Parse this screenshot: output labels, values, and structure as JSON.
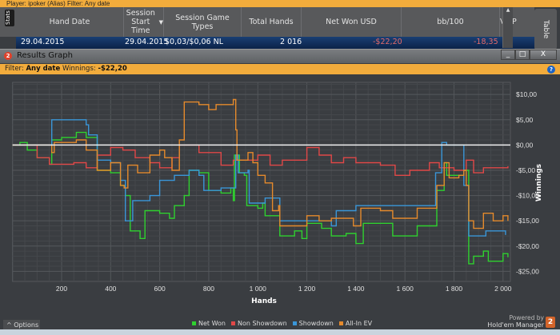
{
  "topbar": {
    "text": "Player: ipoker (Alias)  Filter: Any date"
  },
  "stats_tab": "Stats",
  "table_tab": "Table",
  "table": {
    "columns": [
      "Hand Date",
      "Session Start Time",
      "Session Game Types",
      "Total Hands",
      "Net Won USD",
      "bb/100",
      "VPIP"
    ],
    "row": {
      "hand_date": "29.04.2015",
      "session_start": "29.04.2015",
      "game_type": "$0,03/$0,06 NL",
      "total_hands": "2 016",
      "net_won": "-$22,20",
      "bb100": "-18,35"
    }
  },
  "window": {
    "title": "Results Graph",
    "icon": "2",
    "minimize": "_",
    "maximize": "□",
    "close": "X"
  },
  "filter": {
    "label": "Filter:",
    "value": "Any date",
    "winnings_label": "Winnings:",
    "winnings": "-$22,20",
    "help": "?"
  },
  "options_label": "^  Options",
  "powered": {
    "line1": "Powered by",
    "line2": "Hold'em Manager",
    "logo": "2"
  },
  "chart_data": {
    "type": "line",
    "xlabel": "Hands",
    "ylabel": "Winnings",
    "xlim": [
      0,
      2030
    ],
    "ylim": [
      -27,
      12.4
    ],
    "xticks": [
      200,
      400,
      600,
      800,
      1000,
      1200,
      1400,
      1600,
      1800,
      2000
    ],
    "xtick_labels": [
      "200",
      "400",
      "600",
      "800",
      "1 000",
      "1 200",
      "1 400",
      "1 600",
      "1 800",
      "2 000"
    ],
    "yticks": [
      10,
      5,
      0,
      -5,
      -10,
      -15,
      -20,
      -25
    ],
    "ytick_labels": [
      "$10,00",
      "$5,00",
      "$0,00",
      "-$5,00",
      "-$10,00",
      "-$15,00",
      "-$20,00",
      "-$25,00"
    ],
    "legend_position": "bottom",
    "series": [
      {
        "name": "Net Won",
        "color": "#2fd12f",
        "points": [
          [
            0,
            0
          ],
          [
            30,
            0.5
          ],
          [
            60,
            -1
          ],
          [
            100,
            -2.5
          ],
          [
            150,
            -3.8
          ],
          [
            160,
            1
          ],
          [
            200,
            1.5
          ],
          [
            260,
            2.5
          ],
          [
            300,
            1.5
          ],
          [
            330,
            1.5
          ],
          [
            345,
            -5
          ],
          [
            400,
            -5.5
          ],
          [
            440,
            -8
          ],
          [
            460,
            -10
          ],
          [
            480,
            -17
          ],
          [
            520,
            -18.5
          ],
          [
            540,
            -13
          ],
          [
            600,
            -13.5
          ],
          [
            640,
            -14.5
          ],
          [
            660,
            -12
          ],
          [
            700,
            -10
          ],
          [
            720,
            -5
          ],
          [
            760,
            -5.5
          ],
          [
            800,
            -9
          ],
          [
            850,
            -9.5
          ],
          [
            890,
            -8.5
          ],
          [
            900,
            -11
          ],
          [
            905,
            -2
          ],
          [
            925,
            -5.5
          ],
          [
            945,
            -6
          ],
          [
            955,
            -12
          ],
          [
            1000,
            -12.5
          ],
          [
            1020,
            -11.5
          ],
          [
            1030,
            -14
          ],
          [
            1080,
            -14
          ],
          [
            1090,
            -18
          ],
          [
            1150,
            -17
          ],
          [
            1180,
            -18.5
          ],
          [
            1200,
            -15.5
          ],
          [
            1260,
            -16.5
          ],
          [
            1300,
            -18
          ],
          [
            1360,
            -17.5
          ],
          [
            1400,
            -19.5
          ],
          [
            1430,
            -15.5
          ],
          [
            1500,
            -15.5
          ],
          [
            1550,
            -18
          ],
          [
            1650,
            -16
          ],
          [
            1720,
            -16
          ],
          [
            1730,
            -9
          ],
          [
            1760,
            -3.5
          ],
          [
            1770,
            -6
          ],
          [
            1820,
            -6
          ],
          [
            1840,
            -5
          ],
          [
            1860,
            -23.5
          ],
          [
            1880,
            -22
          ],
          [
            1920,
            -21
          ],
          [
            1940,
            -23
          ],
          [
            2000,
            -21.5
          ],
          [
            2020,
            -22.2
          ]
        ]
      },
      {
        "name": "Non Showdown",
        "color": "#e04848",
        "points": [
          [
            0,
            0
          ],
          [
            100,
            -2.5
          ],
          [
            150,
            -3.8
          ],
          [
            250,
            -3.5
          ],
          [
            300,
            -4.5
          ],
          [
            345,
            -2
          ],
          [
            400,
            -0.5
          ],
          [
            450,
            -1
          ],
          [
            500,
            -2.5
          ],
          [
            560,
            -3.5
          ],
          [
            600,
            -4.5
          ],
          [
            650,
            -2.5
          ],
          [
            680,
            0
          ],
          [
            760,
            -1.5
          ],
          [
            850,
            -4
          ],
          [
            900,
            -3
          ],
          [
            950,
            -3
          ],
          [
            1000,
            -2
          ],
          [
            1050,
            -4
          ],
          [
            1100,
            -3
          ],
          [
            1200,
            -0.5
          ],
          [
            1250,
            -2
          ],
          [
            1300,
            -3.5
          ],
          [
            1350,
            -2.5
          ],
          [
            1400,
            -3.5
          ],
          [
            1500,
            -4
          ],
          [
            1560,
            -6
          ],
          [
            1620,
            -5
          ],
          [
            1700,
            -3.5
          ],
          [
            1740,
            -4.5
          ],
          [
            1800,
            -5
          ],
          [
            1850,
            -3
          ],
          [
            1880,
            -5.5
          ],
          [
            1920,
            -4.5
          ],
          [
            2020,
            -4.2
          ]
        ]
      },
      {
        "name": "Showdown",
        "color": "#3a96d8",
        "points": [
          [
            0,
            0
          ],
          [
            150,
            0
          ],
          [
            160,
            5
          ],
          [
            300,
            4
          ],
          [
            310,
            2
          ],
          [
            340,
            2
          ],
          [
            345,
            -3
          ],
          [
            400,
            -3.5
          ],
          [
            440,
            -7
          ],
          [
            460,
            -15
          ],
          [
            480,
            -15
          ],
          [
            490,
            -11
          ],
          [
            560,
            -10
          ],
          [
            600,
            -7
          ],
          [
            660,
            -6
          ],
          [
            720,
            -5
          ],
          [
            760,
            -6
          ],
          [
            780,
            -9
          ],
          [
            850,
            -8.5
          ],
          [
            900,
            -8.5
          ],
          [
            910,
            -2
          ],
          [
            920,
            -5.5
          ],
          [
            960,
            -5
          ],
          [
            965,
            -11.5
          ],
          [
            1000,
            -11.5
          ],
          [
            1030,
            -10.5
          ],
          [
            1080,
            -10.5
          ],
          [
            1090,
            -15
          ],
          [
            1280,
            -15
          ],
          [
            1300,
            -16
          ],
          [
            1320,
            -13
          ],
          [
            1400,
            -12
          ],
          [
            1720,
            -12
          ],
          [
            1725,
            -5.5
          ],
          [
            1750,
            0.5
          ],
          [
            1770,
            0
          ],
          [
            1820,
            0
          ],
          [
            1840,
            -8
          ],
          [
            1860,
            -18
          ],
          [
            1920,
            -18
          ],
          [
            1930,
            -17
          ],
          [
            2000,
            -17
          ],
          [
            2010,
            -17.8
          ]
        ]
      },
      {
        "name": "All-In EV",
        "color": "#e58a2c",
        "points": [
          [
            0,
            0
          ],
          [
            160,
            -1.5
          ],
          [
            170,
            0.5
          ],
          [
            260,
            1
          ],
          [
            300,
            -1
          ],
          [
            345,
            -5
          ],
          [
            400,
            -3.5
          ],
          [
            440,
            -8
          ],
          [
            455,
            -8.5
          ],
          [
            470,
            -4
          ],
          [
            510,
            -5.5
          ],
          [
            560,
            -2
          ],
          [
            600,
            -1
          ],
          [
            620,
            -2.5
          ],
          [
            650,
            -5
          ],
          [
            680,
            1
          ],
          [
            700,
            8.5
          ],
          [
            760,
            8
          ],
          [
            800,
            7
          ],
          [
            830,
            8
          ],
          [
            900,
            9
          ],
          [
            910,
            3
          ],
          [
            915,
            -3
          ],
          [
            930,
            -3
          ],
          [
            960,
            -1.5
          ],
          [
            980,
            -3.5
          ],
          [
            1000,
            -6
          ],
          [
            1030,
            -7.5
          ],
          [
            1050,
            -7.5
          ],
          [
            1060,
            -13
          ],
          [
            1085,
            -12
          ],
          [
            1090,
            -16
          ],
          [
            1200,
            -14
          ],
          [
            1250,
            -15
          ],
          [
            1300,
            -14.5
          ],
          [
            1350,
            -14.5
          ],
          [
            1390,
            -16
          ],
          [
            1420,
            -12.5
          ],
          [
            1500,
            -13
          ],
          [
            1550,
            -14.5
          ],
          [
            1650,
            -12.5
          ],
          [
            1720,
            -12.5
          ],
          [
            1730,
            -8
          ],
          [
            1760,
            -3.5
          ],
          [
            1780,
            -6.5
          ],
          [
            1820,
            -6
          ],
          [
            1840,
            -5
          ],
          [
            1850,
            -8
          ],
          [
            1860,
            -15
          ],
          [
            1880,
            -16.5
          ],
          [
            1920,
            -13.5
          ],
          [
            1960,
            -15
          ],
          [
            2000,
            -14
          ],
          [
            2020,
            -15
          ]
        ]
      }
    ]
  }
}
